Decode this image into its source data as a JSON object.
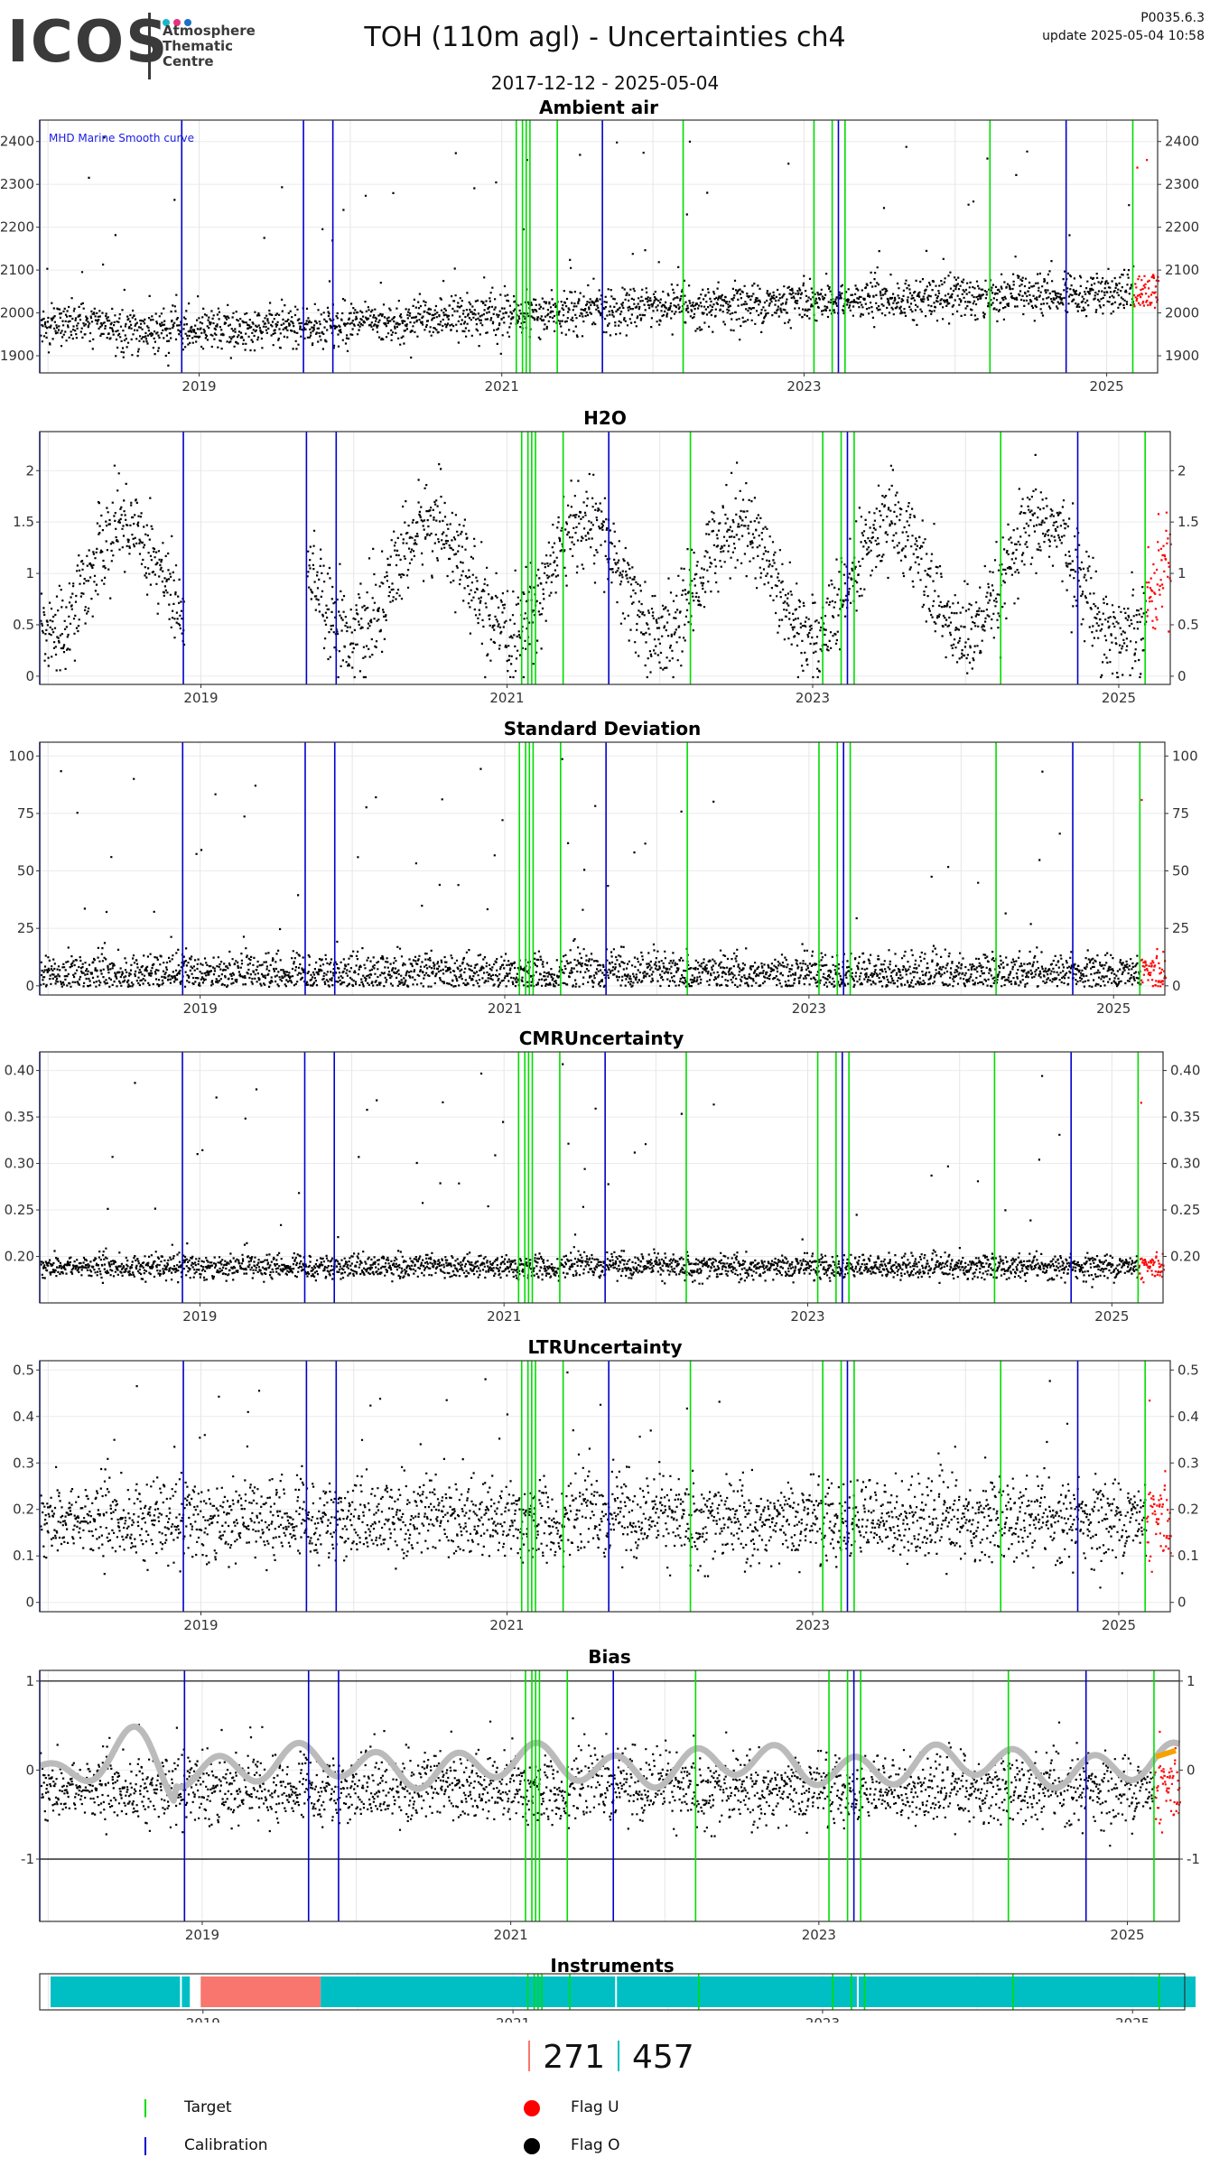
{
  "header": {
    "logo_text": "ICOS",
    "logo_subtitle_1": "Atmosphere",
    "logo_subtitle_2": "Thematic",
    "logo_subtitle_3": "Centre",
    "title": "TOH  (110m agl) - Uncertainties ch4",
    "date_range": "2017-12-12 - 2025-05-04",
    "version": "P0035.6.3",
    "update": "update  2025-05-04 10:58"
  },
  "colors": {
    "target": "#00dd00",
    "calibration": "#0000cc",
    "flag_u": "#ff0000",
    "flag_o": "#000000",
    "smooth": "#bbbbbb",
    "instrument_a": "#00bfc4",
    "instrument_b": "#f8766d",
    "bias_tail": "#f5a300"
  },
  "chart_data": [
    {
      "type": "scatter",
      "title": "Ambient air",
      "annotation": "MHD Marine Smooth curve",
      "x_range": [
        "2017-12-12",
        "2025-05-04"
      ],
      "x_ticks": [
        "2019",
        "2021",
        "2023",
        "2025"
      ],
      "y_ticks": [
        1900,
        2000,
        2100,
        2200,
        2300,
        2400
      ],
      "ylim": [
        1860,
        2450
      ],
      "band": {
        "base": [
          1975,
          1962,
          1960,
          1970,
          1978,
          1990,
          2000,
          2010,
          2015,
          2022,
          2030,
          2035,
          2040,
          2045,
          2050
        ],
        "spread": 45,
        "spike_max": 2430
      }
    },
    {
      "type": "scatter",
      "title": "H2O",
      "x_range": [
        "2017-12-12",
        "2025-05-04"
      ],
      "x_ticks": [
        "2019",
        "2021",
        "2023",
        "2025"
      ],
      "y_ticks": [
        0.0,
        0.5,
        1.0,
        1.5,
        2.0
      ],
      "ylim": [
        -0.08,
        2.38
      ],
      "seasonal": {
        "mean": 0.95,
        "amplitude": 0.55,
        "gap": [
          "2018-11-20",
          "2019-09-10"
        ]
      }
    },
    {
      "type": "scatter",
      "title": "Standard Deviation",
      "x_range": [
        "2017-12-12",
        "2025-05-04"
      ],
      "x_ticks": [
        "2019",
        "2021",
        "2023",
        "2025"
      ],
      "y_ticks": [
        0,
        25,
        50,
        75,
        100
      ],
      "ylim": [
        -4,
        106
      ],
      "band": {
        "base": 6,
        "spread": 8,
        "spike_max": 100
      }
    },
    {
      "type": "scatter",
      "title": "CMRUncertainty",
      "x_range": [
        "2017-12-12",
        "2025-05-04"
      ],
      "x_ticks": [
        "2019",
        "2021",
        "2023",
        "2025"
      ],
      "y_ticks": [
        0.2,
        0.25,
        0.3,
        0.35,
        0.4
      ],
      "y_tick_labels": [
        "0.20",
        "0.25",
        "0.30",
        "0.35",
        "0.40"
      ],
      "ylim": [
        0.15,
        0.42
      ],
      "band": {
        "base": 0.19,
        "spread": 0.012,
        "spike_max": 0.41
      }
    },
    {
      "type": "scatter",
      "title": "LTRUncertainty",
      "x_range": [
        "2017-12-12",
        "2025-05-04"
      ],
      "x_ticks": [
        "2019",
        "2021",
        "2023",
        "2025"
      ],
      "y_ticks": [
        0.0,
        0.1,
        0.2,
        0.3,
        0.4,
        0.5
      ],
      "ylim": [
        -0.02,
        0.52
      ],
      "band": {
        "base": 0.18,
        "spread": 0.08,
        "spike_max": 0.5
      }
    },
    {
      "type": "scatter",
      "title": "Bias",
      "x_range": [
        "2017-12-12",
        "2025-05-04"
      ],
      "x_ticks": [
        "2019",
        "2021",
        "2023",
        "2025"
      ],
      "y_ticks": [
        -1,
        0,
        1
      ],
      "ylim": [
        -1.7,
        1.12
      ],
      "band": {
        "base": -0.2,
        "spread": 0.35,
        "spike_max": 0.6
      },
      "smooth_mean": 0.05
    },
    {
      "type": "table",
      "title": "Instruments",
      "x_range": [
        "2017-12-12",
        "2025-05-04"
      ],
      "x_ticks": [
        "2019",
        "2021",
        "2023",
        "2025"
      ],
      "segments": [
        {
          "start": "2017-12-12",
          "end": "2018-12-01",
          "instrument": "457"
        },
        {
          "start": "2018-12-01",
          "end": "2019-09-10",
          "instrument": "271"
        },
        {
          "start": "2019-09-10",
          "end": "2025-05-04",
          "instrument": "457"
        }
      ]
    }
  ],
  "vertical_lines": {
    "calibration": [
      "2017-12-12",
      "2018-11-20",
      "2019-09-10",
      "2019-11-20",
      "2021-09-01",
      "2023-03-25",
      "2024-09-25"
    ],
    "target": [
      "2021-02-05",
      "2021-02-20",
      "2021-03-01",
      "2021-03-10",
      "2021-05-15",
      "2022-03-15",
      "2023-01-25",
      "2023-03-10",
      "2023-04-10",
      "2024-03-25",
      "2025-03-05"
    ],
    "year_gridlines": [
      "2018-01-01",
      "2019-01-01",
      "2020-01-01",
      "2021-01-01",
      "2022-01-01",
      "2023-01-01",
      "2024-01-01",
      "2025-01-01"
    ]
  },
  "instrument_counts": [
    {
      "label": "271",
      "color": "#f8766d"
    },
    {
      "label": "457",
      "color": "#00bfc4"
    }
  ],
  "legend": {
    "target": "Target",
    "calibration": "Calibration",
    "flag_u": "Flag U",
    "flag_o": "Flag O"
  }
}
